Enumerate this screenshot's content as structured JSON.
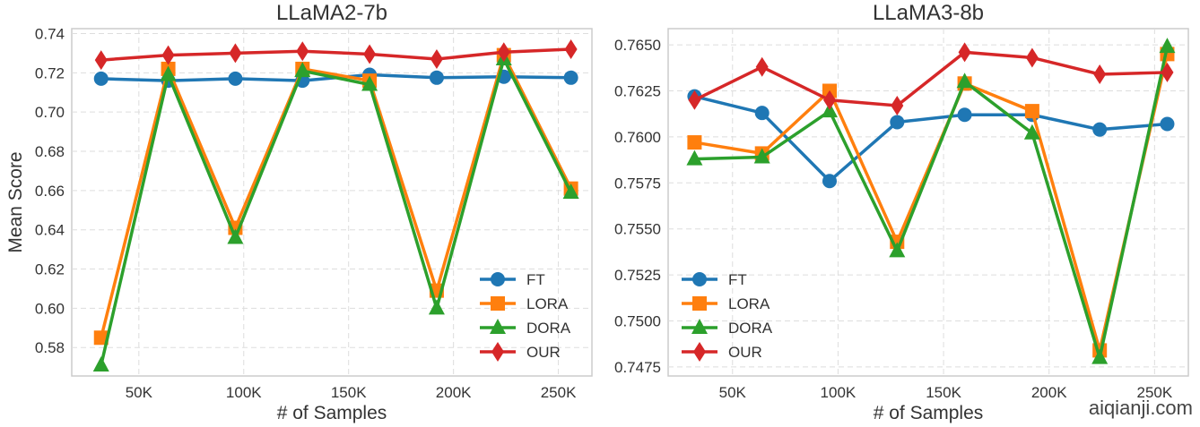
{
  "chart_data": [
    {
      "type": "line",
      "title": "LLaMA2-7b",
      "xlabel": "# of Samples",
      "ylabel": "Mean Score",
      "x": [
        32000,
        64000,
        96000,
        128000,
        160000,
        192000,
        224000,
        256000
      ],
      "xlim": [
        18000,
        266000
      ],
      "ylim": [
        0.5655,
        0.7425
      ],
      "xticks": [
        50000,
        100000,
        150000,
        200000,
        250000
      ],
      "xtick_labels": [
        "50K",
        "100K",
        "150K",
        "200K",
        "250K"
      ],
      "yticks": [
        0.58,
        0.6,
        0.62,
        0.64,
        0.66,
        0.68,
        0.7,
        0.72,
        0.74
      ],
      "ytick_labels": [
        "0.58",
        "0.60",
        "0.62",
        "0.64",
        "0.66",
        "0.68",
        "0.70",
        "0.72",
        "0.74"
      ],
      "grid": true,
      "legend": "bottom-right",
      "series": [
        {
          "name": "FT",
          "color": "#1f77b4",
          "marker": "circle",
          "values": [
            0.717,
            0.716,
            0.717,
            0.716,
            0.719,
            0.7175,
            0.718,
            0.7175
          ]
        },
        {
          "name": "LORA",
          "color": "#ff7f0e",
          "marker": "square",
          "values": [
            0.585,
            0.722,
            0.641,
            0.722,
            0.716,
            0.609,
            0.729,
            0.661
          ]
        },
        {
          "name": "DORA",
          "color": "#2ca02c",
          "marker": "triangle",
          "values": [
            0.571,
            0.719,
            0.636,
            0.721,
            0.714,
            0.6,
            0.727,
            0.659
          ]
        },
        {
          "name": "OUR",
          "color": "#d62728",
          "marker": "diamond",
          "values": [
            0.7265,
            0.729,
            0.73,
            0.731,
            0.7295,
            0.727,
            0.7305,
            0.732
          ]
        }
      ]
    },
    {
      "type": "line",
      "title": "LLaMA3-8b",
      "xlabel": "# of Samples",
      "ylabel": "",
      "x": [
        32000,
        64000,
        96000,
        128000,
        160000,
        192000,
        224000,
        256000
      ],
      "xlim": [
        19500,
        266000
      ],
      "ylim": [
        0.74701,
        0.76588
      ],
      "xticks": [
        50000,
        100000,
        150000,
        200000,
        250000
      ],
      "xtick_labels": [
        "50K",
        "100K",
        "150K",
        "200K",
        "250K"
      ],
      "yticks": [
        0.7475,
        0.75,
        0.7525,
        0.755,
        0.7575,
        0.76,
        0.7625,
        0.765
      ],
      "ytick_labels": [
        "0.7475",
        "0.7500",
        "0.7525",
        "0.7550",
        "0.7575",
        "0.7600",
        "0.7625",
        "0.7650"
      ],
      "grid": true,
      "legend": "bottom-left",
      "series": [
        {
          "name": "FT",
          "color": "#1f77b4",
          "marker": "circle",
          "values": [
            0.7622,
            0.7613,
            0.7576,
            0.7608,
            0.7612,
            0.7612,
            0.7604,
            0.7607
          ]
        },
        {
          "name": "LORA",
          "color": "#ff7f0e",
          "marker": "square",
          "values": [
            0.7597,
            0.7591,
            0.7625,
            0.7543,
            0.7629,
            0.7614,
            0.7484,
            0.7645
          ]
        },
        {
          "name": "DORA",
          "color": "#2ca02c",
          "marker": "triangle",
          "values": [
            0.7588,
            0.7589,
            0.7614,
            0.7538,
            0.763,
            0.7602,
            0.748,
            0.7649
          ]
        },
        {
          "name": "OUR",
          "color": "#d62728",
          "marker": "diamond",
          "values": [
            0.762,
            0.7638,
            0.762,
            0.7617,
            0.7646,
            0.7643,
            0.7634,
            0.7635
          ]
        }
      ]
    }
  ],
  "watermark": "aiqianji.com"
}
